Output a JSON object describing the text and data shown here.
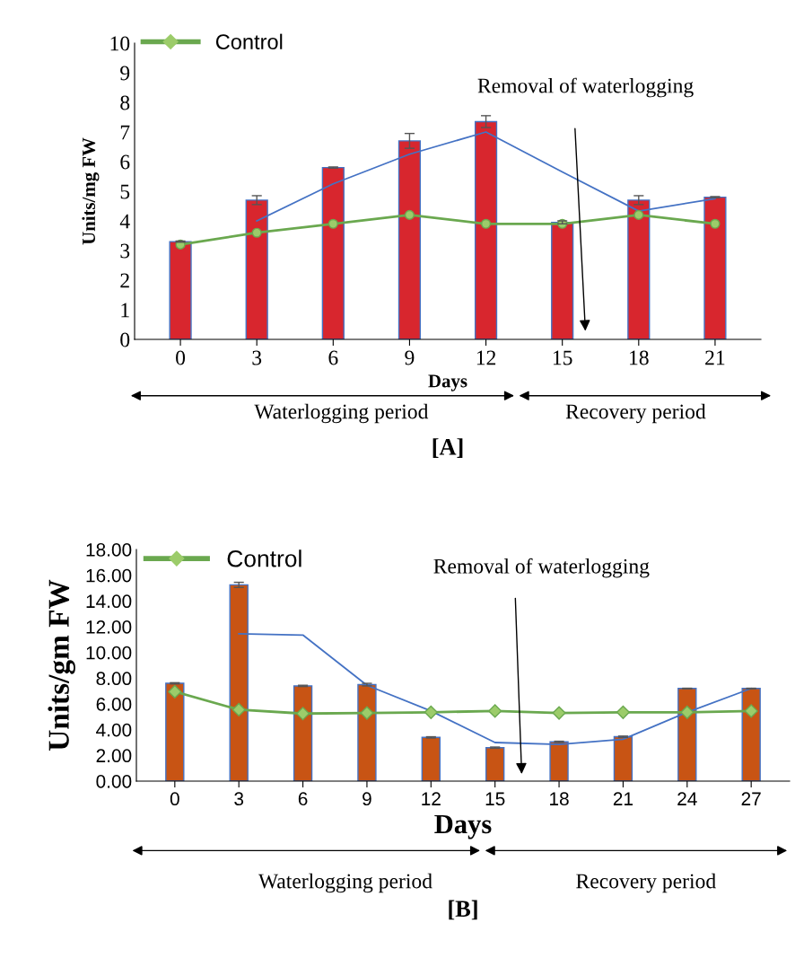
{
  "chart_data": [
    {
      "type": "bar",
      "categories": [
        "0",
        "3",
        "6",
        "9",
        "12",
        "15",
        "18",
        "21"
      ],
      "xlabel": "Days",
      "ylabel": "Units/mg FW",
      "ylim": [
        0,
        10
      ],
      "yticks": [
        0,
        1,
        2,
        3,
        4,
        5,
        6,
        7,
        8,
        9,
        10
      ],
      "grid": false,
      "legend": "top left",
      "series": [
        {
          "color": "#d8262e",
          "values": [
            3.3,
            4.7,
            5.8,
            6.7,
            7.35,
            3.95,
            4.7,
            4.8
          ],
          "errors": [
            0.02,
            0.15,
            0.02,
            0.25,
            0.2,
            0.05,
            0.15,
            0.02
          ]
        },
        {
          "type": "line",
          "color": "#4472c4",
          "marker": "none",
          "values": [
            null,
            4.0,
            5.25,
            6.25,
            7.0,
            5.65,
            4.33,
            4.75
          ]
        },
        {
          "type": "line",
          "name": "Control",
          "color": "#6aa84f",
          "marker": "circle",
          "values": [
            3.2,
            3.6,
            3.9,
            4.2,
            3.9,
            3.9,
            4.2,
            3.9
          ]
        }
      ],
      "annotations": [
        "Removal of waterlogging",
        "Waterlogging period",
        "Recovery period",
        "[A]"
      ]
    },
    {
      "type": "bar",
      "categories": [
        "0",
        "3",
        "6",
        "9",
        "12",
        "15",
        "18",
        "21",
        "24",
        "27"
      ],
      "xlabel": "Days",
      "ylabel": "Units/gm FW",
      "ylim": [
        0,
        18
      ],
      "yticks": [
        {
          "value": 0,
          "label": "0.00"
        },
        {
          "value": 2,
          "label": "2.00"
        },
        {
          "value": 4,
          "label": "4.00"
        },
        {
          "value": 6,
          "label": "6.00"
        },
        {
          "value": 8,
          "label": "8.00"
        },
        {
          "value": 10,
          "label": "10.00"
        },
        {
          "value": 12,
          "label": "12.00"
        },
        {
          "value": 14,
          "label": "14.00"
        },
        {
          "value": 16,
          "label": "16.00"
        },
        {
          "value": 18,
          "label": "18.00"
        }
      ],
      "grid": false,
      "legend": "top left",
      "series": [
        {
          "color": "#c85414",
          "values": [
            7.6,
            15.25,
            7.4,
            7.5,
            3.4,
            2.6,
            3.05,
            3.45,
            7.2,
            7.2
          ],
          "errors": [
            0.05,
            0.2,
            0.05,
            0.1,
            0.05,
            0.05,
            0.05,
            0.05,
            0.02,
            0.02
          ]
        },
        {
          "type": "line",
          "color": "#4472c4",
          "marker": "none",
          "values": [
            null,
            11.45,
            11.35,
            7.45,
            5.45,
            3.0,
            2.85,
            3.25,
            5.35,
            7.2
          ]
        },
        {
          "type": "line",
          "name": "Control",
          "color": "#6aa84f",
          "marker": "diamond",
          "values": [
            6.95,
            5.55,
            5.25,
            5.3,
            5.35,
            5.45,
            5.3,
            5.35,
            5.35,
            5.45
          ]
        }
      ],
      "annotations": [
        "Removal of waterlogging",
        "Waterlogging period",
        "Recovery period",
        "[B]"
      ]
    }
  ]
}
